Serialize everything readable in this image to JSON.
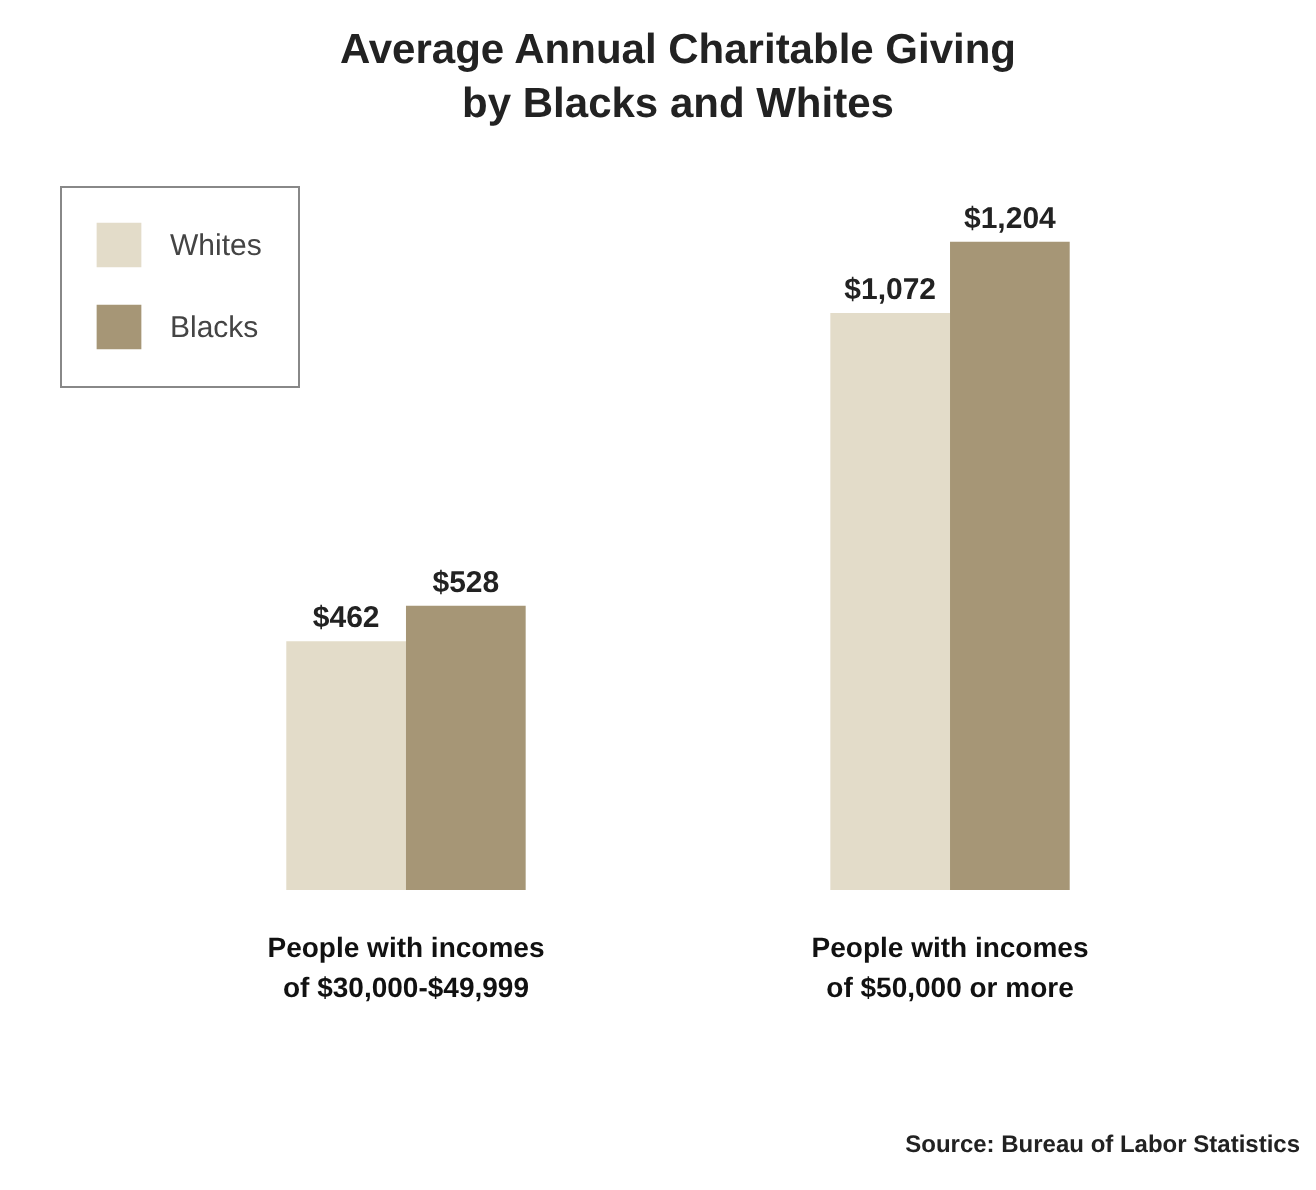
{
  "chart_data": {
    "type": "bar",
    "title": "Average Annual Charitable Giving by Blacks and Whites",
    "categories": [
      "People with incomes of $30,000-$49,999",
      "People with incomes of $50,000 or more"
    ],
    "series": [
      {
        "name": "Whites",
        "color": "#e3dcc9",
        "values": [
          462,
          1072
        ],
        "value_labels": [
          "$462",
          "$1,072"
        ]
      },
      {
        "name": "Blacks",
        "color": "#a69676",
        "values": [
          528,
          1204
        ],
        "value_labels": [
          "$528",
          "$1,204"
        ]
      }
    ],
    "legend": "top left",
    "annotations": [
      "Source: Bureau of Labor Statistics"
    ]
  }
}
